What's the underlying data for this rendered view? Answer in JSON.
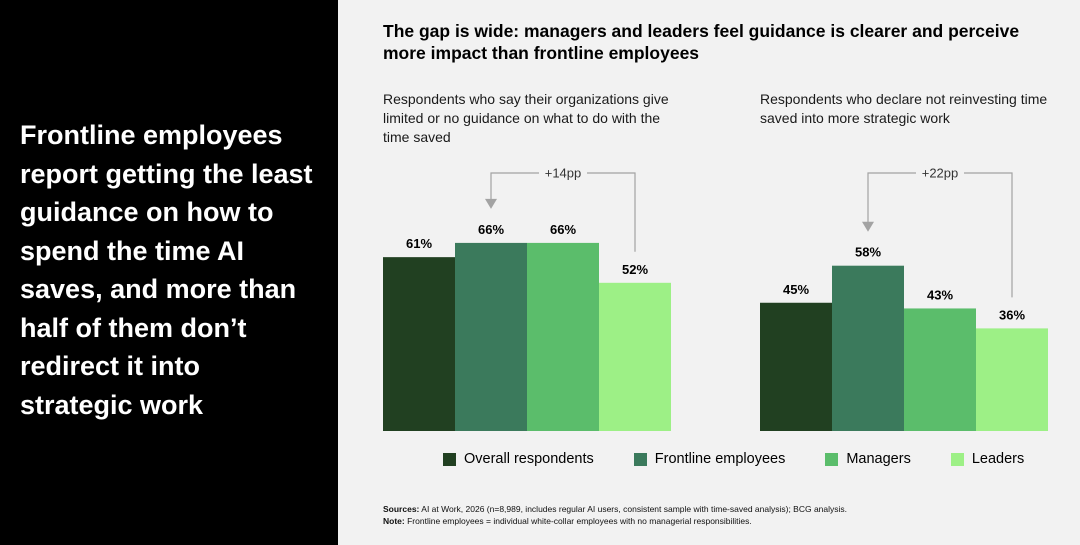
{
  "headline": "Frontline employees report getting the least guidance on how to spend the time AI saves, and more than half of them don’t redirect it into strategic work",
  "title": "The gap is wide: managers and leaders feel guidance is clearer and perceive more impact than frontline employees",
  "colors": {
    "Overall respondents": "#214021",
    "Frontline employees": "#3b7a5c",
    "Managers": "#5bbd6b",
    "Leaders": "#9df086",
    "connector": "#a3a3a3"
  },
  "legend": [
    "Overall respondents",
    "Frontline employees",
    "Managers",
    "Leaders"
  ],
  "chart_data": [
    {
      "type": "bar",
      "title": "Respondents who say their organizations give limited or no guidance on what to do with the time saved",
      "categories": [
        "Overall respondents",
        "Frontline employees",
        "Managers",
        "Leaders"
      ],
      "values": [
        61,
        66,
        66,
        52
      ],
      "value_labels": [
        "61%",
        "66%",
        "66%",
        "52%"
      ],
      "annotation": {
        "text": "+14pp",
        "from": "Leaders",
        "to": "Frontline employees"
      },
      "ylim": [
        0,
        100
      ]
    },
    {
      "type": "bar",
      "title": "Respondents who declare not reinvesting time saved into more strategic work",
      "categories": [
        "Overall respondents",
        "Frontline employees",
        "Managers",
        "Leaders"
      ],
      "values": [
        45,
        58,
        43,
        36
      ],
      "value_labels": [
        "45%",
        "58%",
        "43%",
        "36%"
      ],
      "annotation": {
        "text": "+22pp",
        "from": "Leaders",
        "to": "Frontline employees"
      },
      "ylim": [
        0,
        100
      ]
    }
  ],
  "source": {
    "sources_label": "Sources:",
    "sources_text": "AI at Work, 2026 (n=8,989, includes regular AI users, consistent sample with time-saved analysis); BCG analysis.",
    "note_label": "Note:",
    "note_text": "Frontline employees = individual white-collar employees with no managerial responsibilities."
  }
}
